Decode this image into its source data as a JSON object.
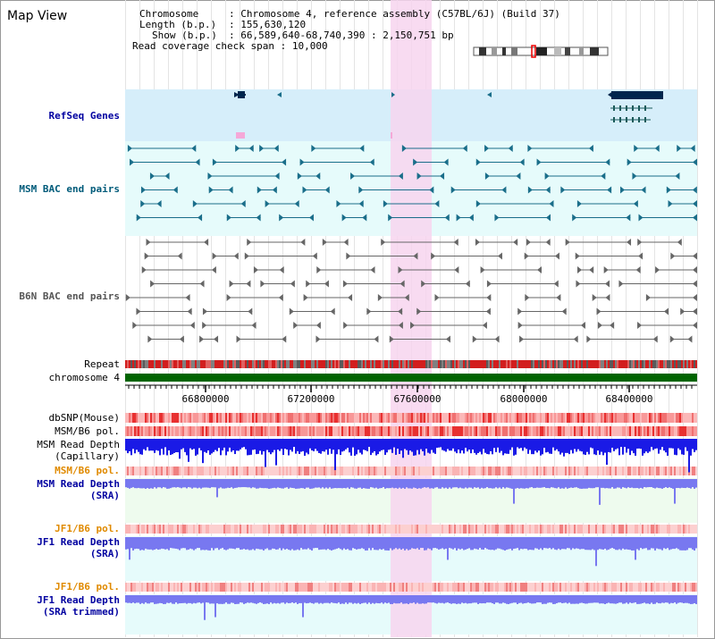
{
  "app_title": "Map View",
  "info": {
    "chromosome_label": "Chromosome",
    "chromosome_value": "Chromosome 4, reference assembly (C57BL/6J) (Build 37)",
    "length_label": "Length (b.p.)",
    "length_value": "155,630,120",
    "show_label": "Show (b.p.)",
    "show_value": "66,589,640-68,740,390 : 2,150,751 bp",
    "coverage_label": "Read coverage check span",
    "coverage_value": "10,000"
  },
  "tracks": {
    "refseq": "RefSeq Genes",
    "msm_bac": "MSM BAC end pairs",
    "b6n_bac": "B6N BAC end pairs",
    "repeat": "Repeat",
    "chromosome": "chromosome 4",
    "dbsnp": "dbSNP(Mouse)",
    "msm_b6_pol_1": "MSM/B6 pol.",
    "msm_read_depth_cap_1": "MSM Read Depth",
    "msm_read_depth_cap_2": "(Capillary)",
    "msm_b6_pol_2": "MSM/B6 pol.",
    "msm_read_depth_sra_1": "MSM Read Depth",
    "msm_read_depth_sra_2": "(SRA)",
    "jf1_b6_pol_1": "JF1/B6 pol.",
    "jf1_read_depth_sra_1": "JF1 Read Depth",
    "jf1_read_depth_sra_2": "(SRA)",
    "jf1_b6_pol_2": "JF1/B6 pol.",
    "jf1_read_depth_trim_1": "JF1 Read Depth",
    "jf1_read_depth_trim_2": "(SRA trimmed)"
  },
  "ruler_ticks": [
    "66800000",
    "67200000",
    "67600000",
    "68000000",
    "68400000"
  ],
  "colors": {
    "highlight": "#f7d5ef",
    "refseq_bg": "#d6eefa",
    "bac_bg": "#e6fbfb",
    "chromosome_bar": "#006400",
    "refseq_feature": "#00264d",
    "msm_bac_feature": "#1a6e8a",
    "b6n_bac_feature": "#666666",
    "depth_capillary": "#1a1ae6",
    "depth_sra": "#7878f0"
  }
}
